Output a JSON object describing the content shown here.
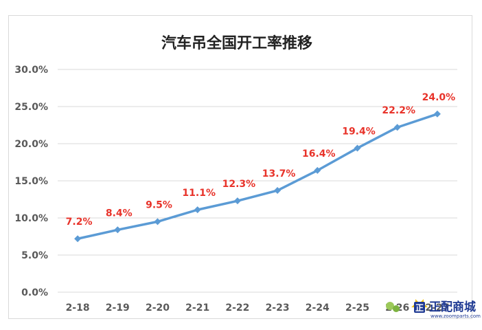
{
  "chart_data": {
    "type": "line",
    "title": "汽车吊全国开工率推移",
    "categories": [
      "2-18",
      "2-19",
      "2-20",
      "2-21",
      "2-22",
      "2-23",
      "2-24",
      "2-25",
      "2-26",
      "2-27"
    ],
    "series": [
      {
        "values": [
          7.2,
          8.4,
          9.5,
          11.1,
          12.3,
          13.7,
          16.4,
          19.4,
          22.2,
          24.0
        ],
        "data_labels": [
          "7.2%",
          "8.4%",
          "9.5%",
          "11.1%",
          "12.3%",
          "13.7%",
          "16.4%",
          "19.4%",
          "22.2%",
          "24.0%"
        ],
        "color": "#5b9bd5"
      }
    ],
    "y_ticks": [
      "0.0%",
      "5.0%",
      "10.0%",
      "15.0%",
      "20.0%",
      "25.0%",
      "30.0%"
    ],
    "ylim": [
      0,
      30
    ],
    "grid": true,
    "legend": "none",
    "label_color": "#e8332a"
  },
  "watermark": {
    "brand_text": "正配商城",
    "url_text": "www.zoomparts.com",
    "logo_char": "正",
    "brand_color": "#1f3a93"
  }
}
